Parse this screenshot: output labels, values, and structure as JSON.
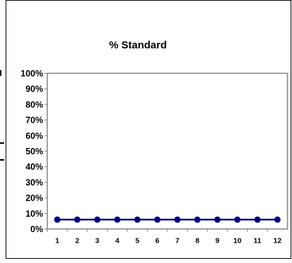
{
  "chart_data": {
    "type": "line",
    "title": "% Standard",
    "xlabel": "",
    "ylabel": "",
    "categories": [
      "1",
      "2",
      "3",
      "4",
      "5",
      "6",
      "7",
      "8",
      "9",
      "10",
      "11",
      "12"
    ],
    "series": [
      {
        "values": [
          6,
          6,
          6,
          6,
          6,
          6,
          6,
          6,
          6,
          6,
          6,
          6
        ]
      }
    ],
    "ylim": [
      0,
      100
    ],
    "y_ticks": [
      "0%",
      "10%",
      "20%",
      "30%",
      "40%",
      "50%",
      "60%",
      "70%",
      "80%",
      "90%",
      "100%"
    ],
    "grid": false,
    "legend": "none",
    "colors": {
      "line": "#000080",
      "marker": "#000080",
      "plot_border": "#808080",
      "frame_border": "#000000"
    }
  }
}
